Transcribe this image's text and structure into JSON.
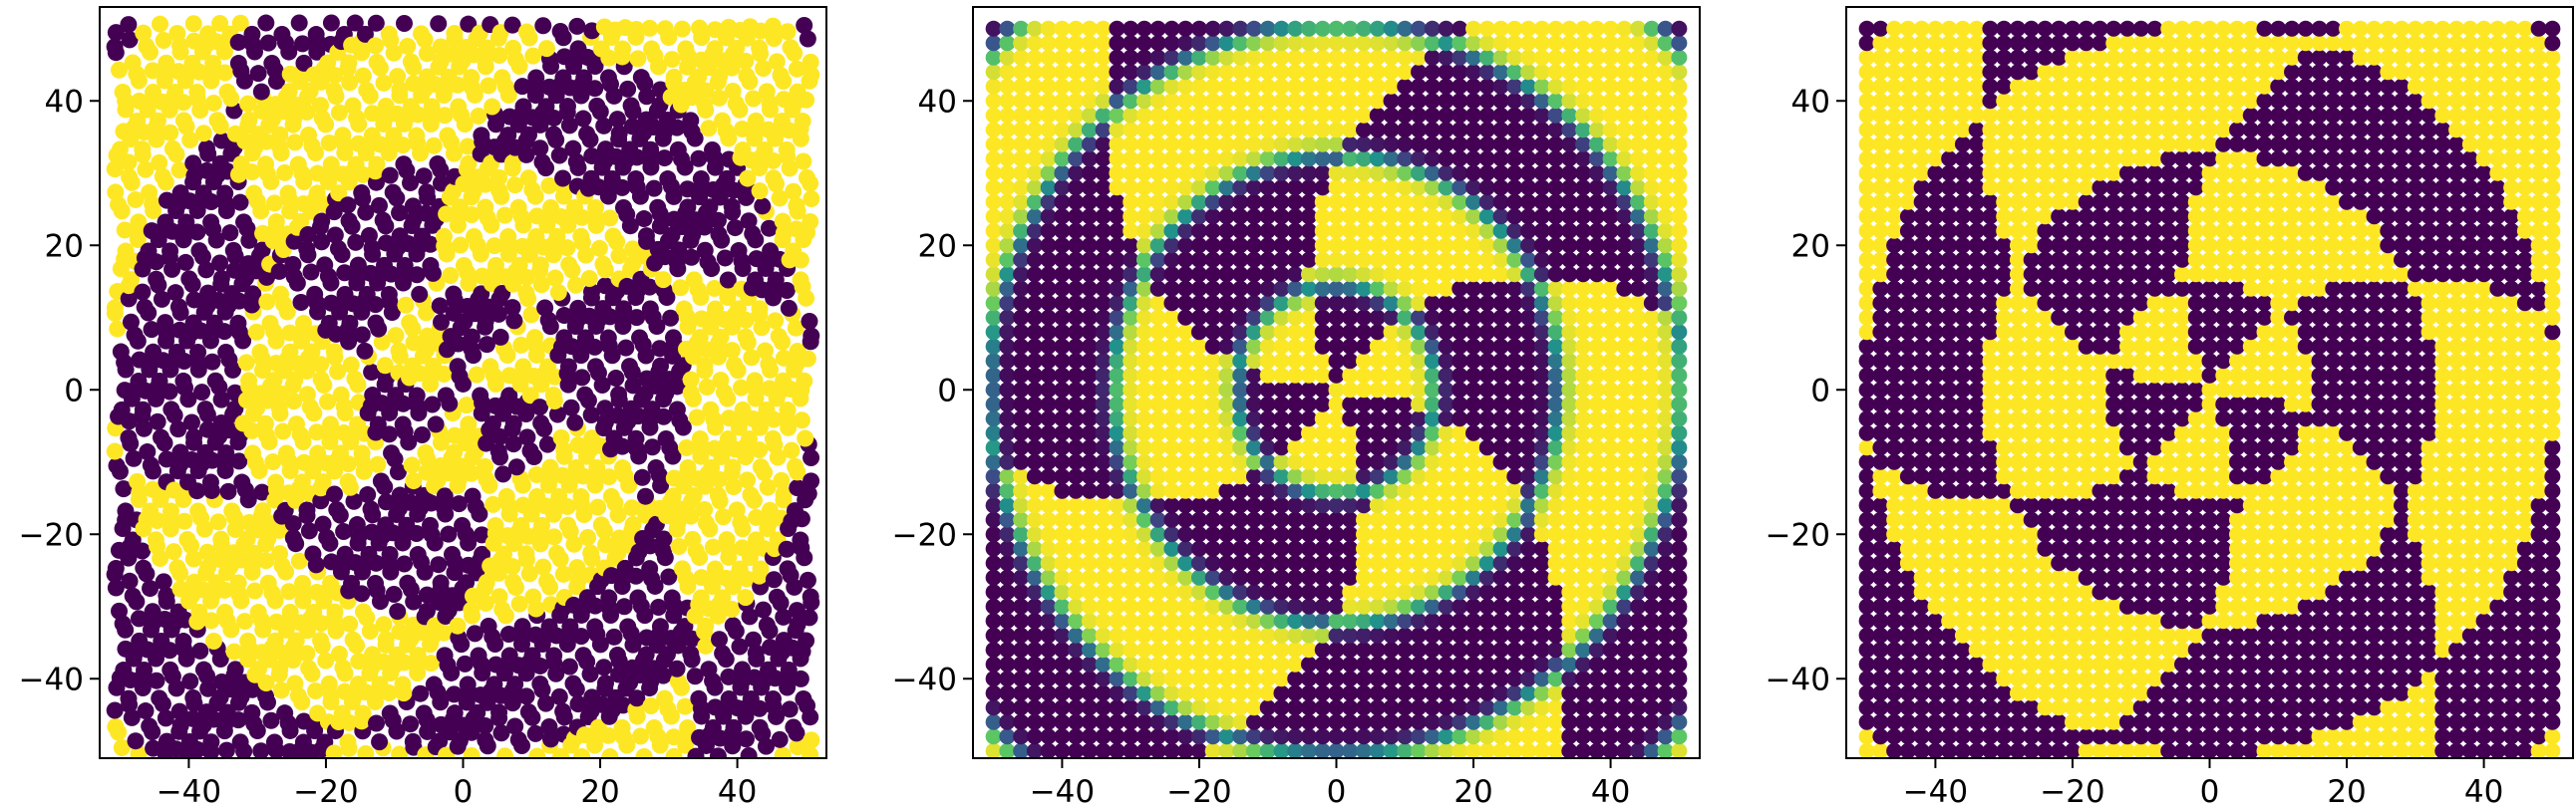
{
  "chart_data": [
    {
      "type": "scatter",
      "panel": "left",
      "title": "",
      "xlabel": "",
      "ylabel": "",
      "xlim": [
        -53,
        53
      ],
      "ylim": [
        -51,
        53
      ],
      "xticks": [
        -40,
        -20,
        0,
        20,
        40
      ],
      "yticks": [
        -40,
        -20,
        0,
        20,
        40
      ],
      "xtick_labels": [
        "−40",
        "−20",
        "0",
        "20",
        "40"
      ],
      "ytick_labels": [
        "−40",
        "−20",
        "0",
        "20",
        "40"
      ],
      "grid": false,
      "legend": "none",
      "colormap": "viridis",
      "class_colors": {
        "class_0": "#440154",
        "class_1": "#fde725"
      },
      "points": "grid x,y in [-50,50], binary classes forming a spiral-ring pattern"
    },
    {
      "type": "scatter",
      "panel": "middle",
      "title": "",
      "xlabel": "",
      "ylabel": "",
      "xlim": [
        -53,
        53
      ],
      "ylim": [
        -51,
        53
      ],
      "xticks": [
        -40,
        -20,
        0,
        20,
        40
      ],
      "yticks": [
        -40,
        -20,
        0,
        20,
        40
      ],
      "xtick_labels": [
        "−40",
        "−20",
        "0",
        "20",
        "40"
      ],
      "ytick_labels": [
        "−40",
        "−20",
        "0",
        "20",
        "40"
      ],
      "grid": false,
      "legend": "none",
      "colormap": "viridis",
      "class_colors": {
        "class_0": "#440154",
        "boundary": "#21918c",
        "class_1": "#fde725"
      },
      "points": "grid x,y in [-50,50] spaced 2, continuous prediction with soft boundaries"
    },
    {
      "type": "scatter",
      "panel": "right",
      "title": "",
      "xlabel": "",
      "ylabel": "",
      "xlim": [
        -53,
        53
      ],
      "ylim": [
        -51,
        53
      ],
      "xticks": [
        -40,
        -20,
        0,
        20,
        40
      ],
      "yticks": [
        -40,
        -20,
        0,
        20,
        40
      ],
      "xtick_labels": [
        "−40",
        "−20",
        "0",
        "20",
        "40"
      ],
      "ytick_labels": [
        "−40",
        "−20",
        "0",
        "20",
        "40"
      ],
      "grid": false,
      "legend": "none",
      "colormap": "viridis",
      "class_colors": {
        "class_0": "#440154",
        "class_1": "#fde725"
      },
      "points": "grid x,y in [-50,50] spaced 2, thresholded binary prediction"
    }
  ]
}
